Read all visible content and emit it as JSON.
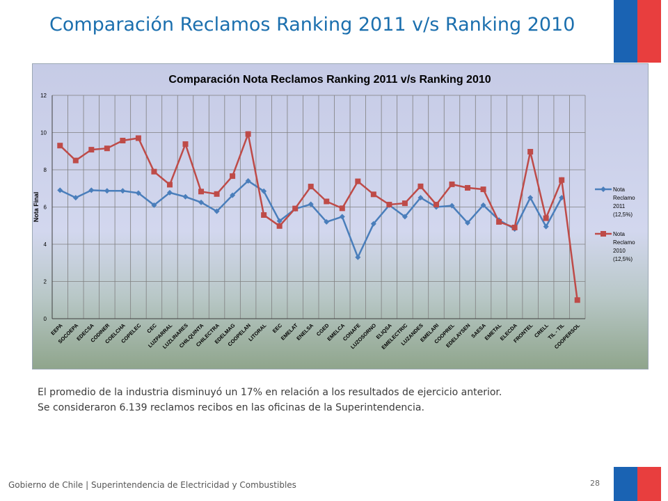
{
  "slide": {
    "title": "Comparación Reclamos Ranking 2011 v/s Ranking 2010",
    "body_lines": [
      "El promedio de la industria disminuyó un 17% en relación a los resultados de ejercicio anterior.",
      "Se consideraron 6.139 reclamos recibos en las oficinas de la Superintendencia."
    ],
    "footer": "Gobierno de Chile | Superintendencia de Electricidad y Combustibles",
    "page_number": "28",
    "flag_colors": {
      "blue": "#1a63b3",
      "red": "#e83e3e"
    }
  },
  "chart_data": {
    "type": "line",
    "title": "Comparación Nota Reclamos Ranking 2011 v/s Ranking 2010",
    "xlabel": "",
    "ylabel": "Nota Final",
    "ylim": [
      0,
      12
    ],
    "yticks": [
      "0",
      "2",
      "4",
      "6",
      "8",
      "10",
      "12"
    ],
    "grid": true,
    "legend_position": "right",
    "categories": [
      "EEPA",
      "SOCOEPA",
      "EDECSA",
      "CODINER",
      "COELCHA",
      "COPELEC",
      "CEC",
      "LUZPARRAL",
      "LUZLINARES",
      "CHILQUINTA",
      "CHILECTRA",
      "EDELMAG",
      "COOPELAN",
      "LITORAL",
      "EEC",
      "EMELAT",
      "ENELSA",
      "CGED",
      "EMELCA",
      "CONAFE",
      "LUZOSORNO",
      "ELIQSA",
      "EMELECTRIC",
      "LUZANDES",
      "EMELARI",
      "COOPREL",
      "EDELAYSEN",
      "SAESA",
      "EMETAL",
      "ELECDA",
      "FRONTEL",
      "CRELL",
      "TIL - TIL",
      "COOPERSOL"
    ],
    "series": [
      {
        "name": [
          "Nota",
          "Reclamo",
          "2011",
          "(12,5%)"
        ],
        "color": "#4a7ebb",
        "marker": "diamond",
        "values": [
          6.9,
          6.5,
          6.9,
          6.87,
          6.87,
          6.75,
          6.1,
          6.77,
          6.55,
          6.25,
          5.77,
          6.63,
          7.4,
          6.85,
          5.25,
          5.9,
          6.15,
          5.2,
          5.48,
          3.3,
          5.1,
          6.1,
          5.48,
          6.5,
          6.0,
          6.07,
          5.15,
          6.1,
          5.3,
          4.82,
          6.5,
          4.95,
          6.5,
          null
        ]
      },
      {
        "name": [
          "Nota",
          "Reclamo",
          "2010",
          "(12,5%)"
        ],
        "color": "#be4b48",
        "marker": "square",
        "values": [
          9.3,
          8.5,
          9.08,
          9.15,
          9.57,
          9.7,
          7.9,
          7.2,
          9.38,
          6.83,
          6.7,
          7.66,
          9.92,
          5.57,
          4.98,
          5.92,
          7.1,
          6.3,
          5.93,
          7.38,
          6.68,
          6.13,
          6.2,
          7.11,
          6.13,
          7.22,
          7.03,
          6.95,
          5.2,
          4.9,
          8.97,
          5.4,
          7.45,
          1.0
        ]
      }
    ]
  }
}
